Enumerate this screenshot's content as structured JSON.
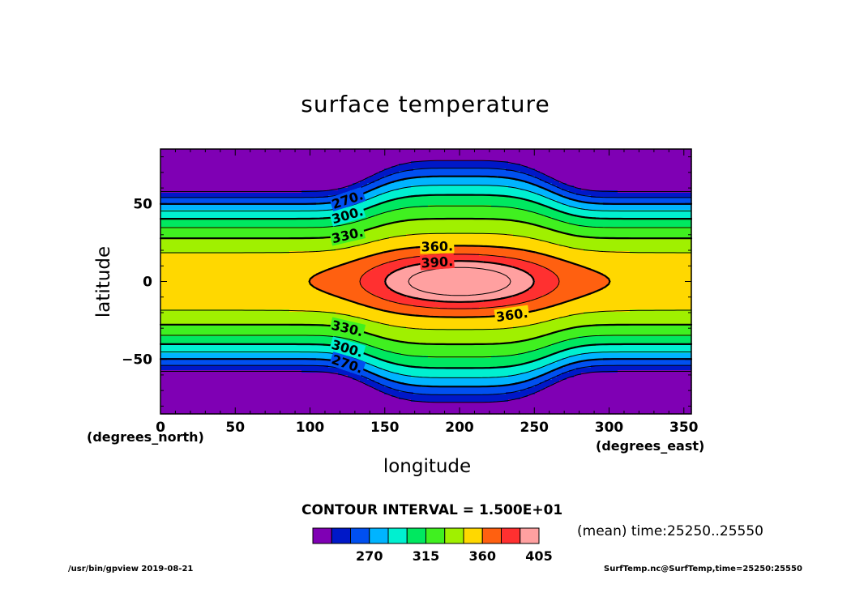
{
  "chart_data": {
    "type": "heatmap",
    "title": "surface temperature",
    "xlabel": "longitude",
    "ylabel": "latitude",
    "x_unit": "(degrees_east)",
    "y_unit": "(degrees_north)",
    "xlim": [
      0,
      355
    ],
    "ylim": [
      -85,
      85
    ],
    "x_ticks": [
      0,
      50,
      100,
      150,
      200,
      250,
      300,
      350
    ],
    "y_ticks": [
      -50,
      0,
      50
    ],
    "x_tick_labels": [
      "0",
      "50",
      "100",
      "150",
      "200",
      "250",
      "300",
      "350"
    ],
    "y_tick_labels": [
      "−50",
      "0",
      "50"
    ],
    "contour_interval_text": "CONTOUR INTERVAL = 1.500E+01",
    "contour_interval": 15,
    "labeled_contours": [
      "270.",
      "300.",
      "330.",
      "360.",
      "390."
    ],
    "levels": [
      240,
      255,
      270,
      285,
      300,
      315,
      330,
      345,
      360,
      375,
      390,
      405
    ],
    "colorbar_colors": [
      "#7f00b4",
      "#0018c8",
      "#0050f0",
      "#00b4ff",
      "#00f0d0",
      "#00e860",
      "#40f020",
      "#a0f000",
      "#ffd800",
      "#ff6010",
      "#ff3030",
      "#ffa0a0"
    ],
    "colorbar_tick_labels": [
      "270",
      "315",
      "360",
      "405"
    ],
    "field_description": "zonal temperature bands: ~240 K at poles rising to ~360 K along the equator, with a warm pool centered near lon 200, lat 0 peaking above 405 K",
    "warm_pool_center": [
      200,
      0
    ],
    "contour_color": "#000000"
  },
  "annotations": {
    "mean_time": "(mean) time:25250..25550",
    "footer_left": "/usr/bin/gpview   2019-08-21",
    "footer_right": "SurfTemp.nc@SurfTemp,time=25250:25550"
  }
}
